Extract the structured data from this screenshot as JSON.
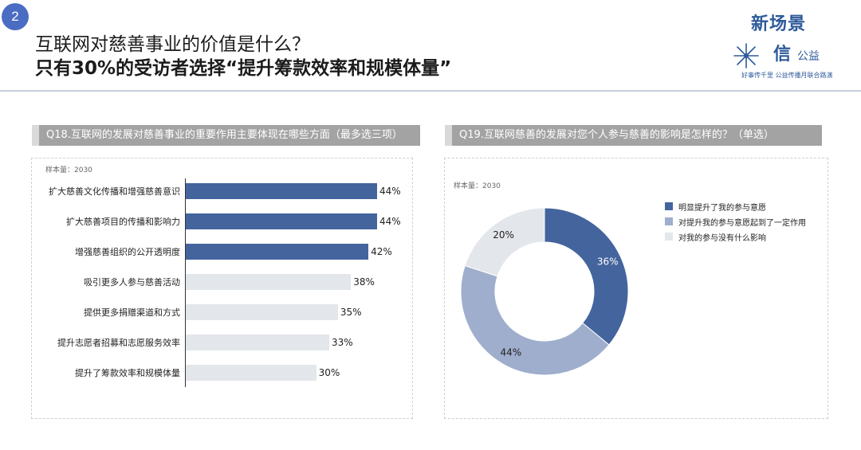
{
  "slide_number": "2",
  "title_line1": "互联网对慈善事业的价值是什么？",
  "title_line2": "只有30%的受访者选择“提升筹款效率和规模体量”",
  "logo": {
    "line1": "新场景",
    "line2": "信",
    "line3": "公益",
    "tagline": "好事传千里 公益传播月联合路演"
  },
  "colors": {
    "dark_blue": "#44649e",
    "mid_blue": "#9eaecc",
    "light_gray": "#e3e6ea"
  },
  "chart_data": [
    {
      "type": "bar",
      "orientation": "horizontal",
      "title": "Q18.互联网的发展对慈善事业的重要作用主要体现在哪些方面（最多选三项）",
      "note": "样本量：2030",
      "categories": [
        "扩大慈善文化传播和增强慈善意识",
        "扩大慈善项目的传播和影响力",
        "增强慈善组织的公开透明度",
        "吸引更多人参与慈善活动",
        "提供更多捐赠渠道和方式",
        "提升志愿者招募和志愿服务效率",
        "提升了筹款效率和规模体量"
      ],
      "values": [
        44,
        44,
        42,
        38,
        35,
        33,
        30
      ],
      "value_labels": [
        "44%",
        "44%",
        "42%",
        "38%",
        "35%",
        "33%",
        "30%"
      ],
      "highlight_count": 3,
      "xlim": [
        0,
        44
      ]
    },
    {
      "type": "pie",
      "variant": "donut",
      "title": "Q19.互联网慈善的发展对您个人参与慈善的影响是怎样的？（单选）",
      "note": "样本量：2030",
      "categories": [
        "明显提升了我的参与意愿",
        "对提升我的参与意愿起到了一定作用",
        "对我的参与没有什么影响"
      ],
      "values": [
        36,
        44,
        20
      ],
      "value_labels": [
        "36%",
        "44%",
        "20%"
      ],
      "legend_position": "right"
    }
  ]
}
